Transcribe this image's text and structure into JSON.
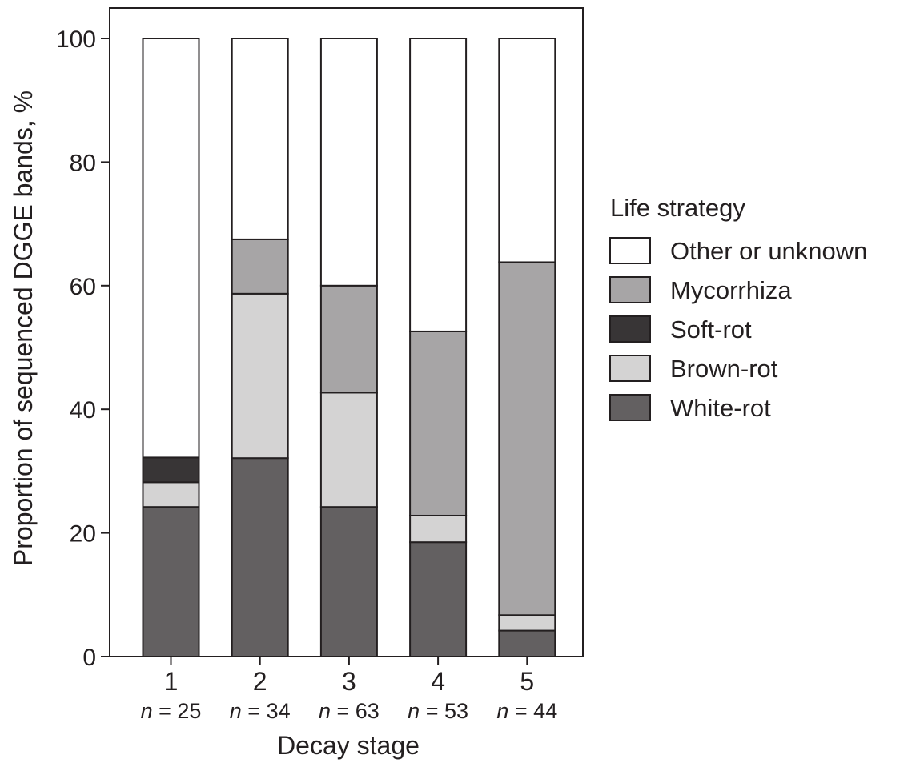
{
  "chart_data": {
    "type": "bar",
    "stacked": true,
    "xlabel": "Decay stage",
    "ylabel": "Proportion of sequenced DGGE bands, %",
    "ylim": [
      0,
      100
    ],
    "yticks": [
      0,
      20,
      40,
      60,
      80,
      100
    ],
    "grid": false,
    "categories": [
      "1",
      "2",
      "3",
      "4",
      "5"
    ],
    "sample_sizes": [
      "= 25",
      "= 34",
      "= 63",
      "= 53",
      "= 44"
    ],
    "n_symbol": "n",
    "series": [
      {
        "name": "White-rot",
        "color": "#636061",
        "values": [
          24.2,
          32.1,
          24.2,
          18.5,
          4.2
        ]
      },
      {
        "name": "Brown-rot",
        "color": "#d4d3d3",
        "values": [
          4.0,
          26.6,
          18.5,
          4.3,
          2.5
        ]
      },
      {
        "name": "Soft-rot",
        "color": "#383536",
        "values": [
          4.0,
          0,
          0,
          0,
          0
        ]
      },
      {
        "name": "Mycorrhiza",
        "color": "#a7a5a6",
        "values": [
          0,
          8.8,
          17.3,
          29.8,
          57.1
        ]
      },
      {
        "name": "Other or unknown",
        "color": "#ffffff",
        "values": [
          67.8,
          32.5,
          40.0,
          47.4,
          36.2
        ]
      }
    ],
    "legend": {
      "title": "Life strategy",
      "placement": "right",
      "order": [
        "Other or unknown",
        "Mycorrhiza",
        "Soft-rot",
        "Brown-rot",
        "White-rot"
      ]
    }
  }
}
